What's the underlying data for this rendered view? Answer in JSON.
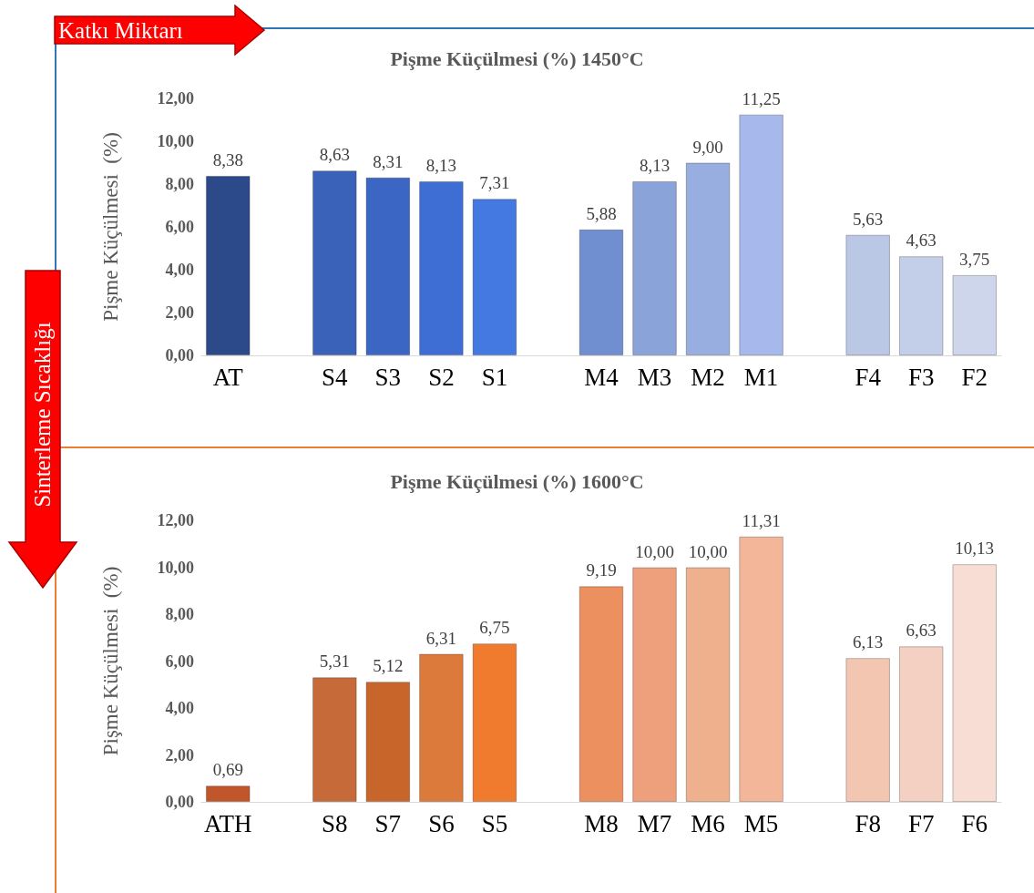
{
  "chart_data": [
    {
      "type": "bar",
      "title": "Pişme Küçülmesi (%) 1450°C",
      "ylabel": "Pişme Küçülmesi  (%)",
      "annotations": [
        "Katkı Miktarı",
        "Sinterleme Sıcaklığı"
      ],
      "categories": [
        "AT",
        null,
        "S4",
        "S3",
        "S2",
        "S1",
        null,
        "M4",
        "M3",
        "M2",
        "M1",
        null,
        "F4",
        "F3",
        "F2"
      ],
      "values": [
        8.38,
        null,
        8.63,
        8.31,
        8.13,
        7.31,
        null,
        5.88,
        8.13,
        9.0,
        11.25,
        null,
        5.63,
        4.63,
        3.75
      ],
      "value_labels": [
        "8,38",
        null,
        "8,63",
        "8,31",
        "8,13",
        "7,31",
        null,
        "5,88",
        "8,13",
        "9,00",
        "11,25",
        null,
        "5,63",
        "4,63",
        "3,75"
      ],
      "colors": [
        "#2c4a8a",
        null,
        "#3a62b8",
        "#3b66c4",
        "#3e6ed4",
        "#4379e0",
        null,
        "#6f8fd0",
        "#8aa3d8",
        "#98aee0",
        "#a7b8ec",
        null,
        "#bac8e6",
        "#c3cfe8",
        "#cdd6ea"
      ],
      "ylim": [
        0,
        12
      ],
      "yticks": [
        {
          "value": 0,
          "label": "0,00"
        },
        {
          "value": 2,
          "label": "2,00"
        },
        {
          "value": 4,
          "label": "4,00"
        },
        {
          "value": 6,
          "label": "6,00"
        },
        {
          "value": 8,
          "label": "8,00"
        },
        {
          "value": 10,
          "label": "10,00"
        },
        {
          "value": 12,
          "label": "12,00"
        }
      ],
      "grid": false
    },
    {
      "type": "bar",
      "title": "Pişme Küçülmesi (%) 1600°C",
      "ylabel": "Pişme Küçülmesi  (%)",
      "categories": [
        "ATH",
        null,
        "S8",
        "S7",
        "S6",
        "S5",
        null,
        "M8",
        "M7",
        "M6",
        "M5",
        null,
        "F8",
        "F7",
        "F6"
      ],
      "values": [
        0.69,
        null,
        5.31,
        5.12,
        6.31,
        6.75,
        null,
        9.19,
        10.0,
        10.0,
        11.31,
        null,
        6.13,
        6.63,
        10.13
      ],
      "value_labels": [
        "0,69",
        null,
        "5,31",
        "5,12",
        "6,31",
        "6,75",
        null,
        "9,19",
        "10,00",
        "10,00",
        "11,31",
        null,
        "6,13",
        "6,63",
        "10,13"
      ],
      "colors": [
        "#c0562a",
        null,
        "#c66a3a",
        "#c8652b",
        "#dc7a3c",
        "#f07b2e",
        null,
        "#ec9060",
        "#eea07c",
        "#efb08e",
        "#f4b698",
        null,
        "#f3c6b2",
        "#f4d0c2",
        "#f7ddd3"
      ],
      "ylim": [
        0,
        12
      ],
      "yticks": [
        {
          "value": 0,
          "label": "0,00"
        },
        {
          "value": 2,
          "label": "2,00"
        },
        {
          "value": 4,
          "label": "4,00"
        },
        {
          "value": 6,
          "label": "6,00"
        },
        {
          "value": 8,
          "label": "8,00"
        },
        {
          "value": 10,
          "label": "10,00"
        },
        {
          "value": 12,
          "label": "12,00"
        }
      ],
      "grid": false
    }
  ]
}
